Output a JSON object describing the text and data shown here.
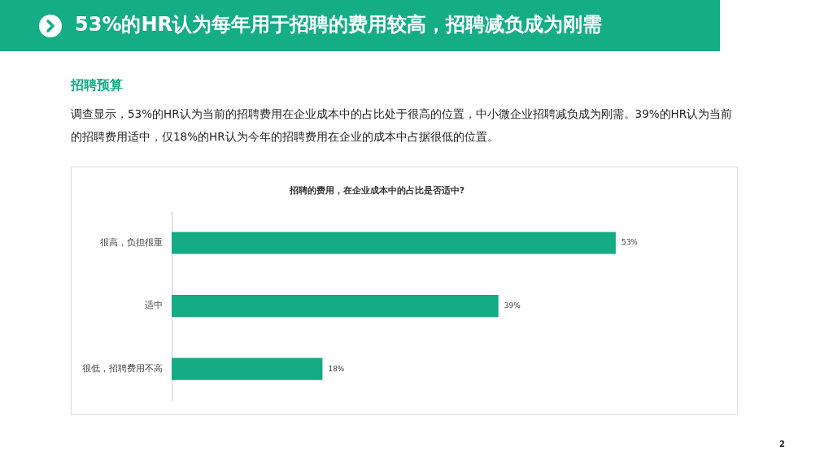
{
  "chart_data": {
    "type": "bar",
    "orientation": "horizontal",
    "title": "招聘的费用，在企业成本中的占比是否适中?",
    "categories": [
      "很高，负担很重",
      "适中",
      "很低，招聘费用不高"
    ],
    "values": [
      53,
      39,
      18
    ],
    "value_labels": [
      "53%",
      "39%",
      "18%"
    ],
    "color": "#14aa84",
    "legend": false,
    "annotations": [
      "53%的HR认为每年用于招聘的费用较高，招聘减负成为刚需",
      "招聘预算",
      "调查显示，53%的HR认为当前的招聘费用在企业成本中的占比处于很高的位置，中小微企业招聘减负成为刚需。39%的HR认为当前的招聘费用适中，仅18%的HR认为今年的招聘费用在企业的成本中占据很低的位置。",
      "2"
    ]
  }
}
